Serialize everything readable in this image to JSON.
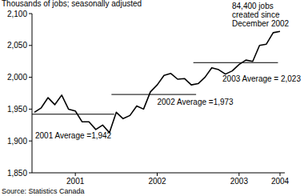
{
  "chart_data": {
    "type": "line",
    "y_label": "Thousands of jobs; seasonally adjusted",
    "source": "Source: Statistics Canada",
    "categories": [
      null,
      null,
      null,
      null,
      null,
      null,
      "2001",
      null,
      null,
      null,
      null,
      null,
      null,
      null,
      null,
      null,
      null,
      null,
      "2002",
      null,
      null,
      null,
      null,
      null,
      null,
      null,
      null,
      null,
      null,
      null,
      "2003",
      null,
      null,
      null,
      null,
      null,
      "2004"
    ],
    "values": [
      1945,
      1952,
      1968,
      1957,
      1972,
      1950,
      1947,
      1930,
      1930,
      1918,
      1925,
      1913,
      1945,
      1935,
      1940,
      1955,
      1950,
      1977,
      1988,
      2003,
      2006,
      1997,
      1998,
      1988,
      1990,
      2000,
      2015,
      2012,
      2005,
      2010,
      2020,
      2027,
      2025,
      2050,
      2052,
      2070,
      2072
    ],
    "color": "#000000",
    "ylim": [
      1850,
      2100
    ],
    "yticks": [
      {
        "value": 1850,
        "label": "1,850"
      },
      {
        "value": 1900,
        "label": "1,900"
      },
      {
        "value": 1950,
        "label": "1,950"
      },
      {
        "value": 2000,
        "label": "2,000"
      },
      {
        "value": 2050,
        "label": "2,050"
      },
      {
        "value": 2100,
        "label": "2,100"
      }
    ],
    "grid": false,
    "averages": [
      {
        "label": "2001 Average =1,942",
        "value": 1942
      },
      {
        "label": "2002 Average =1,973",
        "value": 1973
      },
      {
        "label": "2003 Average = 2,023",
        "value": 2023
      }
    ],
    "annotation": [
      "84,400 jobs",
      "created since",
      "December 2002"
    ]
  }
}
